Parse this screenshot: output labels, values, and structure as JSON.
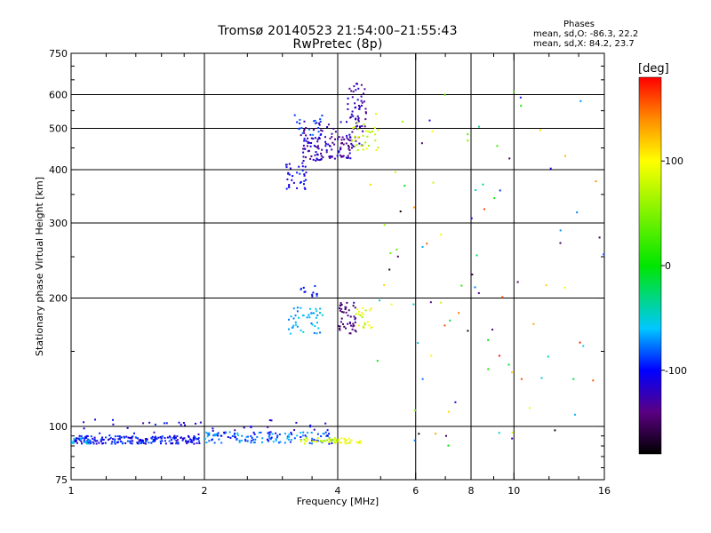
{
  "chart_data": {
    "type": "scatter",
    "title": "Tromsø 20140523 21:54:00–21:55:43",
    "subtitle": "RwPretec (8p)",
    "xlabel": "Frequency [MHz]",
    "ylabel": "Stationary phase Virtual Height [km]",
    "x_scale": "log",
    "y_scale": "log",
    "xlim": [
      1,
      16
    ],
    "ylim": [
      75,
      750
    ],
    "x_ticks": [
      "1",
      "2",
      "4",
      "6",
      "8",
      "10",
      "16"
    ],
    "x_tick_values": [
      1,
      2,
      4,
      6,
      8,
      10,
      16
    ],
    "y_ticks": [
      "75",
      "100",
      "200",
      "300",
      "400",
      "500",
      "600",
      "750"
    ],
    "y_tick_values": [
      75,
      100,
      200,
      300,
      400,
      500,
      600,
      750
    ],
    "grid": true,
    "phase_stats": {
      "heading": "Phases",
      "o_line": "mean, sd,O: -86.3, 22.2",
      "x_line": "mean, sd,X: 84.2, 23.7"
    },
    "colorbar": {
      "label": "[deg]",
      "range": [
        -180,
        180
      ],
      "ticks": [
        "100",
        "0",
        "-100"
      ],
      "tick_values": [
        100,
        0,
        -100
      ]
    },
    "clusters": [
      {
        "f": [
          1.02,
          1.95
        ],
        "h": [
          91,
          95
        ],
        "phase": [
          -120,
          -80
        ],
        "n": 210,
        "spread": "log"
      },
      {
        "f": [
          1.0,
          1.1
        ],
        "h": [
          91,
          94
        ],
        "phase": [
          -80,
          -50
        ],
        "n": 12,
        "spread": "log"
      },
      {
        "f": [
          2.0,
          3.9
        ],
        "h": [
          91,
          97
        ],
        "phase": [
          -110,
          -60
        ],
        "n": 130,
        "spread": "log"
      },
      {
        "f": [
          3.3,
          4.5
        ],
        "h": [
          91,
          94
        ],
        "phase": [
          60,
          110
        ],
        "n": 55,
        "spread": "log"
      },
      {
        "f": [
          1.05,
          3.9
        ],
        "h": [
          95,
          104
        ],
        "phase": [
          -130,
          -90
        ],
        "n": 40,
        "spread": "log"
      },
      {
        "f": [
          3.05,
          3.4
        ],
        "h": [
          360,
          420
        ],
        "phase": [
          -120,
          -90
        ],
        "n": 35,
        "spread": "log"
      },
      {
        "f": [
          3.3,
          4.3
        ],
        "h": [
          420,
          480
        ],
        "phase": [
          -150,
          -100
        ],
        "n": 95,
        "spread": "log"
      },
      {
        "f": [
          3.3,
          4.6
        ],
        "h": [
          445,
          520
        ],
        "phase": [
          -140,
          -110
        ],
        "n": 55,
        "spread": "log"
      },
      {
        "f": [
          4.2,
          4.65
        ],
        "h": [
          500,
          640
        ],
        "phase": [
          -140,
          -110
        ],
        "n": 45,
        "spread": "log"
      },
      {
        "f": [
          3.2,
          3.7
        ],
        "h": [
          480,
          540
        ],
        "phase": [
          -100,
          -70
        ],
        "n": 20,
        "spread": "log"
      },
      {
        "f": [
          4.3,
          5.0
        ],
        "h": [
          440,
          520
        ],
        "phase": [
          60,
          100
        ],
        "n": 30,
        "spread": "log"
      },
      {
        "f": [
          3.1,
          3.7
        ],
        "h": [
          165,
          190
        ],
        "phase": [
          -80,
          -50
        ],
        "n": 45,
        "spread": "log"
      },
      {
        "f": [
          3.3,
          3.6
        ],
        "h": [
          200,
          215
        ],
        "phase": [
          -110,
          -80
        ],
        "n": 12,
        "spread": "log"
      },
      {
        "f": [
          4.0,
          4.4
        ],
        "h": [
          165,
          195
        ],
        "phase": [
          -160,
          -120
        ],
        "n": 45,
        "spread": "log"
      },
      {
        "f": [
          4.4,
          4.8
        ],
        "h": [
          170,
          190
        ],
        "phase": [
          60,
          110
        ],
        "n": 22,
        "spread": "log"
      },
      {
        "f": [
          4.7,
          16
        ],
        "h": [
          90,
          650
        ],
        "phase": [
          -180,
          180
        ],
        "n": 95,
        "spread": "log"
      }
    ]
  }
}
